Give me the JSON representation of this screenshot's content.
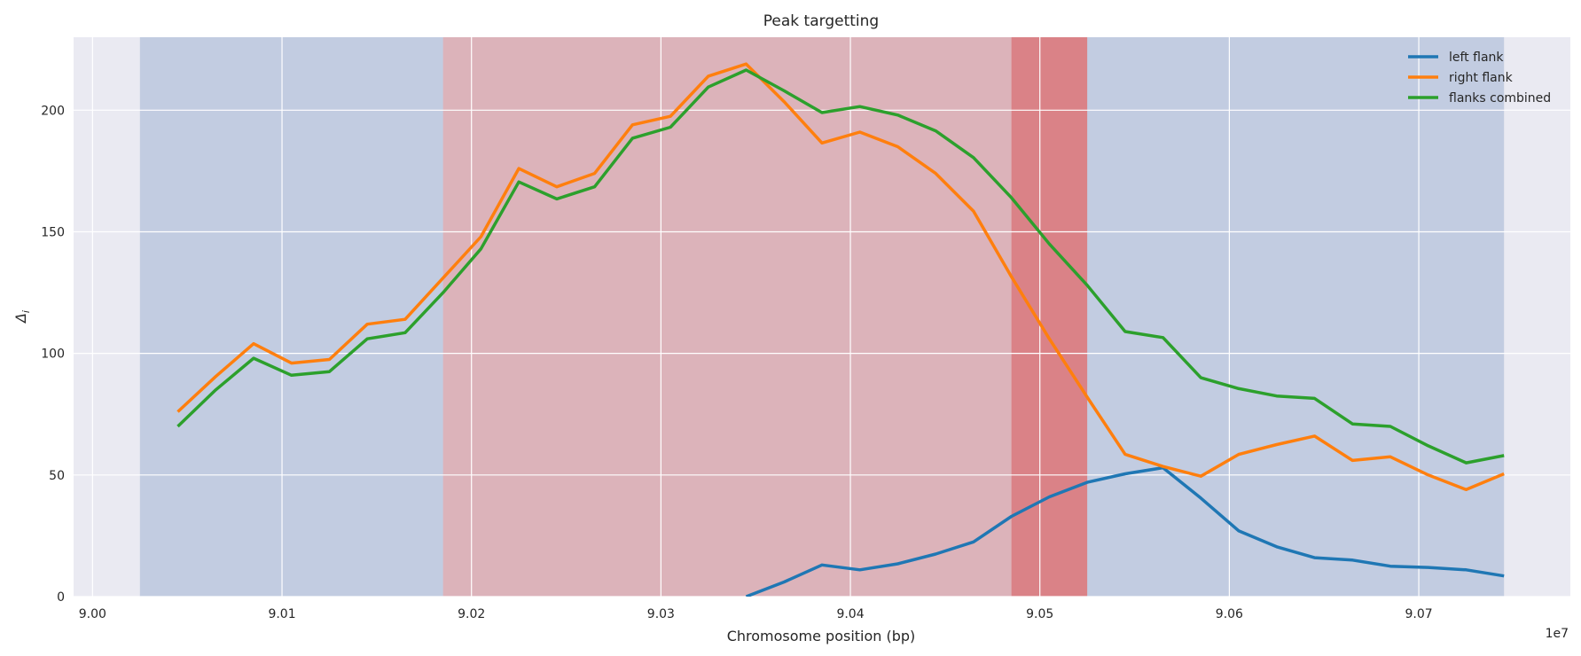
{
  "chart_data": {
    "type": "line",
    "title": "Peak targetting",
    "xlabel": "Chromosome position (bp)",
    "ylabel": "Δ",
    "ylabel_sub": "i",
    "x_offset_label": "1e7",
    "x_scale": 10000000,
    "xlim": [
      89990000,
      90780000
    ],
    "ylim": [
      0,
      230
    ],
    "xticks": [
      9.0,
      9.01,
      9.02,
      9.03,
      9.04,
      9.05,
      9.06,
      9.07
    ],
    "xtick_labels": [
      "9.00",
      "9.01",
      "9.02",
      "9.03",
      "9.04",
      "9.05",
      "9.06",
      "9.07"
    ],
    "yticks": [
      0,
      50,
      100,
      150,
      200
    ],
    "ytick_labels": [
      "0",
      "50",
      "100",
      "150",
      "200"
    ],
    "grid": true,
    "legend_position": "top-right",
    "shaded_regions": [
      {
        "x0": 90025000,
        "x1": 90185000,
        "color": "#4c72b0",
        "opacity": 0.25
      },
      {
        "x0": 90185000,
        "x1": 90525000,
        "color": "#c44e52",
        "opacity": 0.35
      },
      {
        "x0": 90485000,
        "x1": 90525000,
        "color": "#d62728",
        "opacity": 0.35
      },
      {
        "x0": 90525000,
        "x1": 90745000,
        "color": "#4c72b0",
        "opacity": 0.25
      }
    ],
    "x": [
      90045000,
      90065000,
      90085000,
      90105000,
      90125000,
      90145000,
      90165000,
      90185000,
      90205000,
      90225000,
      90245000,
      90265000,
      90285000,
      90305000,
      90325000,
      90345000,
      90365000,
      90385000,
      90405000,
      90425000,
      90445000,
      90465000,
      90485000,
      90505000,
      90525000,
      90545000,
      90565000,
      90585000,
      90605000,
      90625000,
      90645000,
      90665000,
      90685000,
      90705000,
      90725000,
      90745000
    ],
    "series": [
      {
        "name": "left flank",
        "color": "#1f77b4",
        "values": [
          null,
          null,
          null,
          null,
          null,
          null,
          null,
          null,
          null,
          null,
          null,
          null,
          null,
          null,
          null,
          0,
          6,
          13,
          11,
          13.5,
          17.5,
          22.5,
          33,
          41,
          47,
          50.5,
          53,
          40.5,
          27,
          20.5,
          16,
          15,
          12.5,
          12,
          11,
          8.5
        ]
      },
      {
        "name": "right flank",
        "color": "#ff7f0e",
        "values": [
          76,
          90.5,
          104,
          96,
          97.5,
          112,
          114,
          131,
          148,
          176,
          168.5,
          174,
          194,
          197.5,
          214,
          219,
          203.5,
          186.5,
          191,
          185,
          174,
          158.5,
          131.5,
          106,
          82,
          58.5,
          53.5,
          49.5,
          58.5,
          62.5,
          66,
          56,
          57.5,
          50,
          44,
          50.5
        ]
      },
      {
        "name": "flanks combined",
        "color": "#2ca02c",
        "values": [
          70,
          85,
          98,
          91,
          92.5,
          106,
          108.5,
          125,
          143,
          170.5,
          163.5,
          168.5,
          188.5,
          193,
          209.5,
          216.5,
          208,
          199,
          201.5,
          198,
          191.5,
          180.5,
          164,
          145,
          128,
          109,
          106.5,
          90,
          85.5,
          82.5,
          81.5,
          71,
          70,
          62,
          55,
          58
        ]
      }
    ],
    "styles": {
      "axes_background": "#eaeaf2",
      "grid_color": "#ffffff"
    }
  }
}
